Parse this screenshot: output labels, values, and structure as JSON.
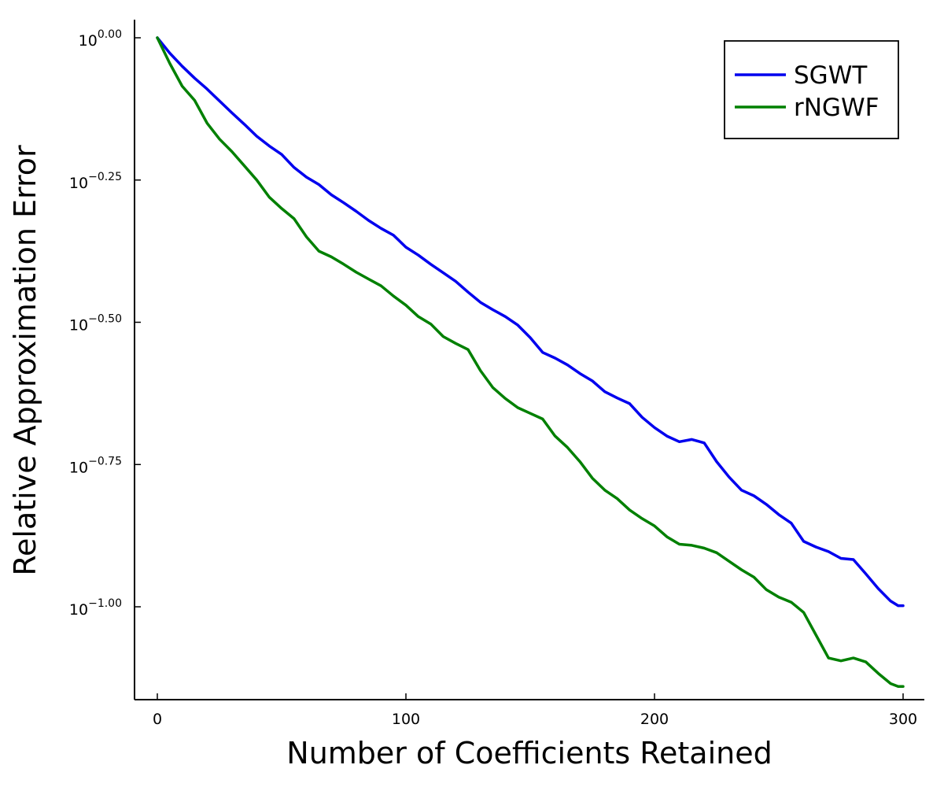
{
  "chart_data": {
    "type": "line",
    "title": "",
    "xlabel": "Number of Coefficients Retained",
    "ylabel": "Relative Approximation Error",
    "xlim": [
      0,
      300
    ],
    "ylim_log10": [
      -1.14,
      0.03
    ],
    "y_scale": "log10",
    "grid": false,
    "legend_position": "top-right",
    "x_ticks": [
      {
        "value": 0,
        "label": "0"
      },
      {
        "value": 100,
        "label": "100"
      },
      {
        "value": 200,
        "label": "200"
      },
      {
        "value": 300,
        "label": "300"
      }
    ],
    "y_ticks": [
      {
        "log10": 0.0,
        "base": "10",
        "exp": "0.00"
      },
      {
        "log10": -0.25,
        "base": "10",
        "exp": "−0.25"
      },
      {
        "log10": -0.5,
        "base": "10",
        "exp": "−0.50"
      },
      {
        "log10": -0.75,
        "base": "10",
        "exp": "−0.75"
      },
      {
        "log10": -1.0,
        "base": "10",
        "exp": "−1.00"
      }
    ],
    "series": [
      {
        "name": "SGWT",
        "color": "#0000ee",
        "x": [
          0,
          5,
          10,
          15,
          20,
          25,
          30,
          35,
          40,
          45,
          50,
          55,
          60,
          65,
          70,
          75,
          80,
          85,
          90,
          95,
          100,
          105,
          110,
          115,
          120,
          125,
          130,
          135,
          140,
          145,
          150,
          155,
          160,
          165,
          170,
          175,
          180,
          185,
          190,
          195,
          200,
          205,
          210,
          215,
          220,
          225,
          230,
          235,
          240,
          245,
          250,
          255,
          260,
          265,
          270,
          275,
          280,
          285,
          290,
          295,
          298,
          300
        ],
        "log10_y": [
          0.0,
          -0.027,
          -0.05,
          -0.071,
          -0.09,
          -0.111,
          -0.132,
          -0.152,
          -0.173,
          -0.19,
          -0.205,
          -0.228,
          -0.245,
          -0.258,
          -0.276,
          -0.29,
          -0.305,
          -0.321,
          -0.335,
          -0.347,
          -0.368,
          -0.382,
          -0.398,
          -0.413,
          -0.428,
          -0.447,
          -0.465,
          -0.478,
          -0.49,
          -0.505,
          -0.527,
          -0.553,
          -0.563,
          -0.575,
          -0.59,
          -0.603,
          -0.622,
          -0.633,
          -0.643,
          -0.667,
          -0.685,
          -0.7,
          -0.71,
          -0.706,
          -0.712,
          -0.745,
          -0.772,
          -0.795,
          -0.805,
          -0.82,
          -0.838,
          -0.853,
          -0.885,
          -0.895,
          -0.903,
          -0.915,
          -0.917,
          -0.942,
          -0.968,
          -0.99,
          -0.998,
          -0.998
        ]
      },
      {
        "name": "rNGWF",
        "color": "#008000",
        "x": [
          0,
          5,
          10,
          15,
          20,
          25,
          30,
          35,
          40,
          45,
          50,
          55,
          60,
          65,
          70,
          75,
          80,
          85,
          90,
          95,
          100,
          105,
          110,
          115,
          120,
          125,
          130,
          135,
          140,
          145,
          150,
          155,
          160,
          165,
          170,
          175,
          180,
          185,
          190,
          195,
          200,
          205,
          210,
          215,
          220,
          225,
          230,
          235,
          240,
          245,
          250,
          255,
          260,
          265,
          270,
          275,
          280,
          285,
          290,
          295,
          298,
          300
        ],
        "log10_y": [
          0.0,
          -0.045,
          -0.085,
          -0.11,
          -0.15,
          -0.178,
          -0.2,
          -0.225,
          -0.25,
          -0.28,
          -0.3,
          -0.318,
          -0.35,
          -0.375,
          -0.385,
          -0.398,
          -0.412,
          -0.424,
          -0.436,
          -0.454,
          -0.47,
          -0.49,
          -0.503,
          -0.525,
          -0.537,
          -0.548,
          -0.585,
          -0.615,
          -0.634,
          -0.65,
          -0.66,
          -0.67,
          -0.7,
          -0.72,
          -0.745,
          -0.774,
          -0.795,
          -0.81,
          -0.83,
          -0.845,
          -0.858,
          -0.877,
          -0.89,
          -0.892,
          -0.897,
          -0.905,
          -0.92,
          -0.935,
          -0.948,
          -0.97,
          -0.983,
          -0.992,
          -1.01,
          -1.05,
          -1.09,
          -1.095,
          -1.09,
          -1.097,
          -1.117,
          -1.135,
          -1.14,
          -1.14
        ]
      }
    ]
  }
}
